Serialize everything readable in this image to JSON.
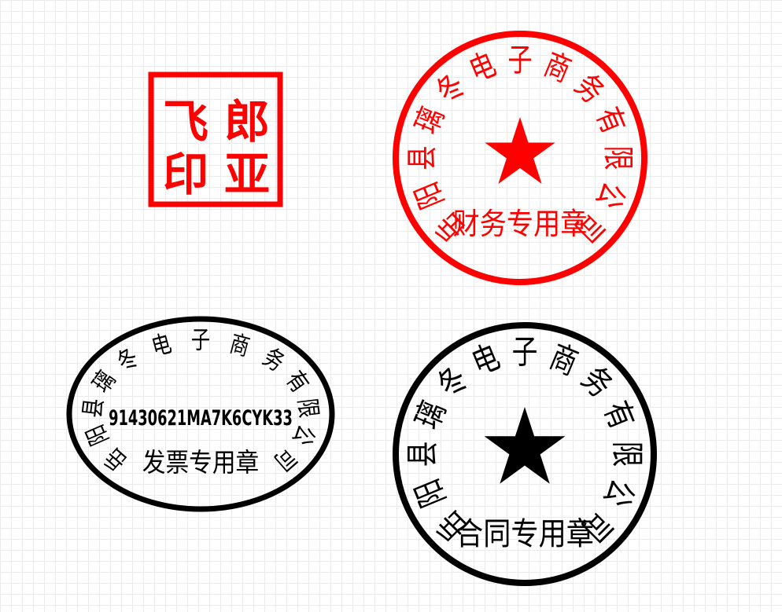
{
  "colors": {
    "red": "#ff0000",
    "black": "#000000",
    "grid": "#ebebeb",
    "background": "#ffffff"
  },
  "personal_seal": {
    "chars": [
      "郎",
      "亚",
      "飞",
      "印"
    ]
  },
  "finance_seal": {
    "company_name": "岳阳县璃冬电子商务有限公司",
    "purpose": "财务专用章",
    "center_icon": "star-icon"
  },
  "invoice_seal": {
    "company_name": "岳阳县璃冬电子商务有限公司",
    "tax_id": "91430621MA7K6CYK33",
    "purpose": "发票专用章"
  },
  "contract_seal": {
    "company_name": "岳阳县璃冬电子商务有限公司",
    "purpose": "合同专用章",
    "center_icon": "star-icon"
  }
}
